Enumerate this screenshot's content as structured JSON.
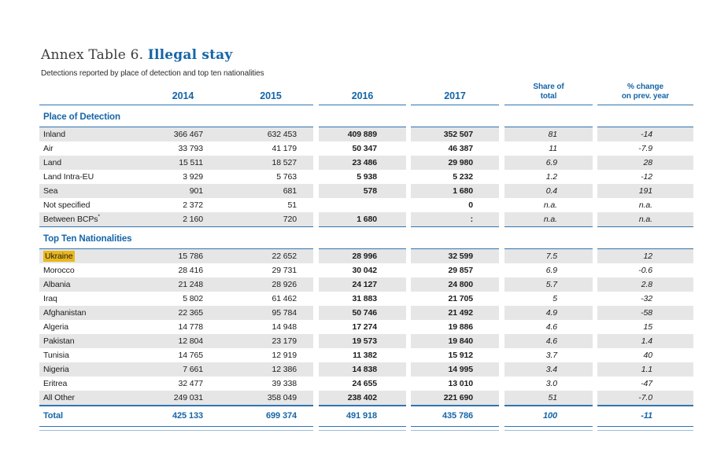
{
  "page": {
    "title_prefix": "Annex Table 6.",
    "title_emphasis": "Illegal stay",
    "subtitle": "Detections reported by place of detection and top ten nationalities"
  },
  "colors": {
    "accent_blue": "#1565a8",
    "rule_blue": "#2e74b0",
    "rule_light_blue": "#9dbedd",
    "row_stripe_gray": "#e6e6e6",
    "highlight_yellow": "#eab71e"
  },
  "table": {
    "year_columns": [
      "2014",
      "2015",
      "2016",
      "2017"
    ],
    "share_header": {
      "line1": "Share of",
      "line2": "total"
    },
    "pct_change_header": {
      "line1": "% change",
      "line2": "on prev. year"
    },
    "sections": [
      {
        "title": "Place of Detection",
        "rows": [
          {
            "label": "Inland",
            "values": [
              "366 467",
              "632 453",
              "409 889",
              "352 507",
              "81",
              "-14"
            ]
          },
          {
            "label": "Air",
            "values": [
              "33 793",
              "41 179",
              "50 347",
              "46 387",
              "11",
              "-7.9"
            ]
          },
          {
            "label": "Land",
            "values": [
              "15 511",
              "18 527",
              "23 486",
              "29 980",
              "6.9",
              "28"
            ]
          },
          {
            "label": "Land Intra-EU",
            "values": [
              "3 929",
              "5 763",
              "5 938",
              "5 232",
              "1.2",
              "-12"
            ]
          },
          {
            "label": "Sea",
            "values": [
              "901",
              "681",
              "578",
              "1 680",
              "0.4",
              "191"
            ]
          },
          {
            "label": "Not specified",
            "values": [
              "2 372",
              "51",
              "",
              "0",
              "n.a.",
              "n.a."
            ]
          },
          {
            "label": "Between BCPs",
            "label_sup": "*",
            "values": [
              "2 160",
              "720",
              "1 680",
              ":",
              "n.a.",
              "n.a."
            ]
          }
        ]
      },
      {
        "title": "Top Ten Nationalities",
        "rows": [
          {
            "label": "Ukraine",
            "highlight": true,
            "values": [
              "15 786",
              "22 652",
              "28 996",
              "32 599",
              "7.5",
              "12"
            ]
          },
          {
            "label": "Morocco",
            "values": [
              "28 416",
              "29 731",
              "30 042",
              "29 857",
              "6.9",
              "-0.6"
            ]
          },
          {
            "label": "Albania",
            "values": [
              "21 248",
              "28 926",
              "24 127",
              "24 800",
              "5.7",
              "2.8"
            ]
          },
          {
            "label": "Iraq",
            "values": [
              "5 802",
              "61 462",
              "31 883",
              "21 705",
              "5",
              "-32"
            ]
          },
          {
            "label": "Afghanistan",
            "values": [
              "22 365",
              "95 784",
              "50 746",
              "21 492",
              "4.9",
              "-58"
            ]
          },
          {
            "label": "Algeria",
            "values": [
              "14 778",
              "14 948",
              "17 274",
              "19 886",
              "4.6",
              "15"
            ]
          },
          {
            "label": "Pakistan",
            "values": [
              "12 804",
              "23 179",
              "19 573",
              "19 840",
              "4.6",
              "1.4"
            ]
          },
          {
            "label": "Tunisia",
            "values": [
              "14 765",
              "12 919",
              "11 382",
              "15 912",
              "3.7",
              "40"
            ]
          },
          {
            "label": "Nigeria",
            "values": [
              "7 661",
              "12 386",
              "14 838",
              "14 995",
              "3.4",
              "1.1"
            ]
          },
          {
            "label": "Eritrea",
            "values": [
              "32 477",
              "39 338",
              "24 655",
              "13 010",
              "3.0",
              "-47"
            ]
          },
          {
            "label": "All Other",
            "values": [
              "249 031",
              "358 049",
              "238 402",
              "221 690",
              "51",
              "-7.0"
            ]
          }
        ]
      }
    ],
    "total": {
      "label": "Total",
      "values": [
        "425 133",
        "699 374",
        "491 918",
        "435 786",
        "100",
        "-11"
      ]
    }
  }
}
